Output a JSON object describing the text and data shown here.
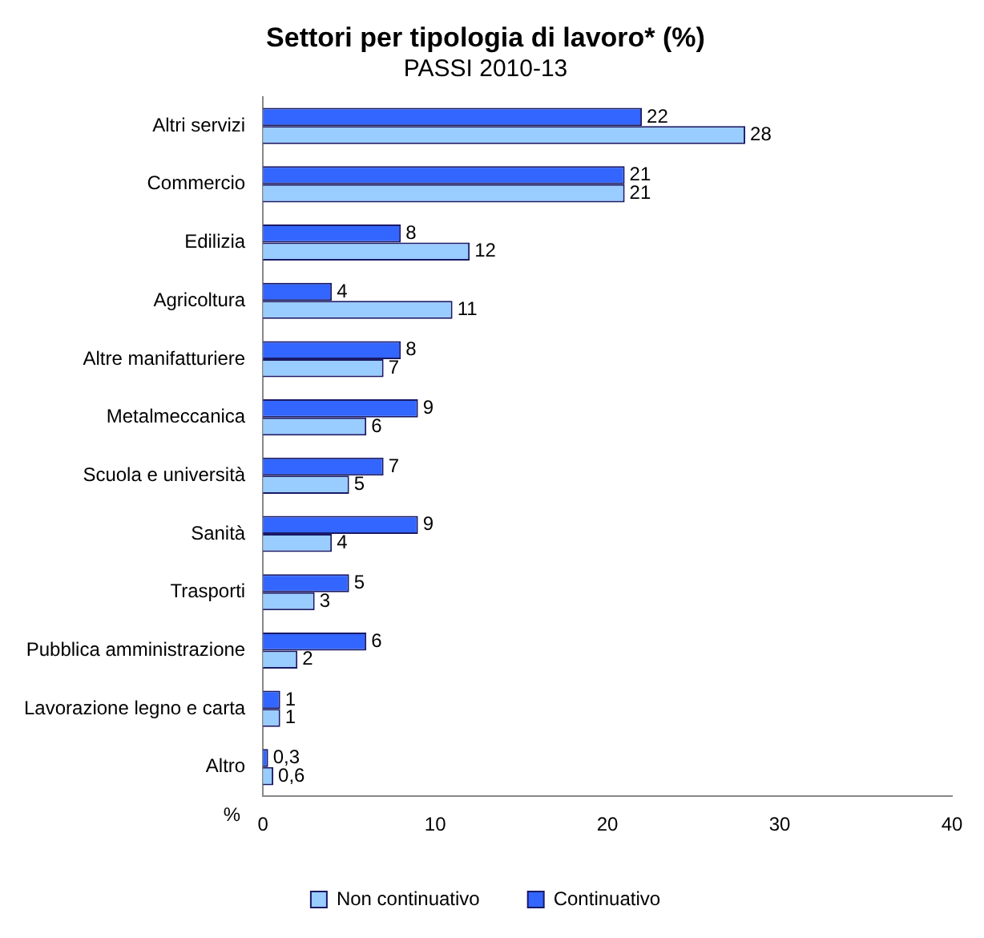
{
  "chart_data": {
    "type": "bar",
    "orientation": "horizontal",
    "title": "Settori per tipologia di lavoro* (%)",
    "subtitle": "PASSI 2010-13",
    "xlabel": "%",
    "categories": [
      "Altri servizi",
      "Commercio",
      "Edilizia",
      "Agricoltura",
      "Altre manifatturiere",
      "Metalmeccanica",
      "Scuola e università",
      "Sanità",
      "Trasporti",
      "Pubblica amministrazione",
      "Lavorazione legno e carta",
      "Altro"
    ],
    "series": [
      {
        "name": "Continuativo",
        "color": "#3366ff",
        "values": [
          22,
          21,
          8,
          4,
          8,
          9,
          7,
          9,
          5,
          6,
          1,
          0.3
        ],
        "value_labels": [
          "22",
          "21",
          "8",
          "4",
          "8",
          "9",
          "7",
          "9",
          "5",
          "6",
          "1",
          "0,3"
        ]
      },
      {
        "name": "Non continuativo",
        "color": "#99ccff",
        "values": [
          28,
          21,
          12,
          11,
          7,
          6,
          5,
          4,
          3,
          2,
          1,
          0.6
        ],
        "value_labels": [
          "28",
          "21",
          "12",
          "11",
          "7",
          "6",
          "5",
          "4",
          "3",
          "2",
          "1",
          "0,6"
        ]
      }
    ],
    "xlim": [
      0,
      40
    ],
    "xticks": [
      0,
      10,
      20,
      30,
      40
    ],
    "grid": false,
    "legend": "bottom"
  }
}
